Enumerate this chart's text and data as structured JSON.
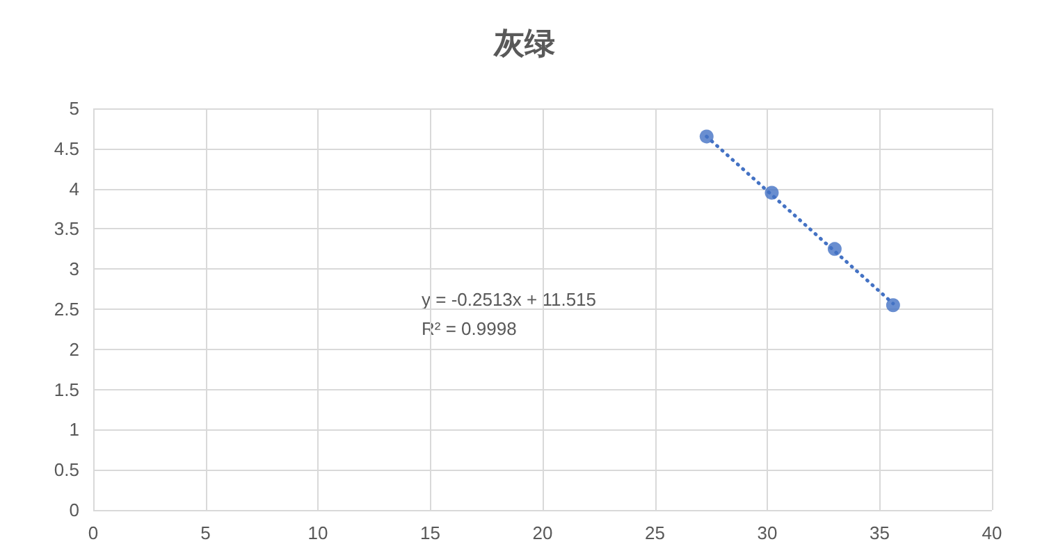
{
  "chart_data": {
    "type": "scatter",
    "title": "灰绿",
    "x": [
      27.3,
      30.2,
      33.0,
      35.6
    ],
    "xlim": [
      0,
      40
    ],
    "xticks": [
      0,
      5,
      10,
      15,
      20,
      25,
      30,
      35,
      40
    ],
    "ylim": [
      0,
      5
    ],
    "yticks": [
      0,
      0.5,
      1,
      1.5,
      2,
      2.5,
      3,
      3.5,
      4,
      4.5,
      5
    ],
    "grid": true,
    "series": [
      {
        "color": "#4472c4",
        "marker": "circle",
        "values": [
          4.65,
          3.95,
          3.25,
          2.55
        ]
      },
      {
        "type": "line",
        "x": [
          27.3,
          35.6
        ],
        "values": [
          4.65,
          2.57
        ],
        "color": "#4472c4",
        "line_style": "dotted",
        "marker": "none"
      }
    ],
    "annotations": [
      "y = -0.2513x + 11.515",
      "R² = 0.9998"
    ]
  }
}
